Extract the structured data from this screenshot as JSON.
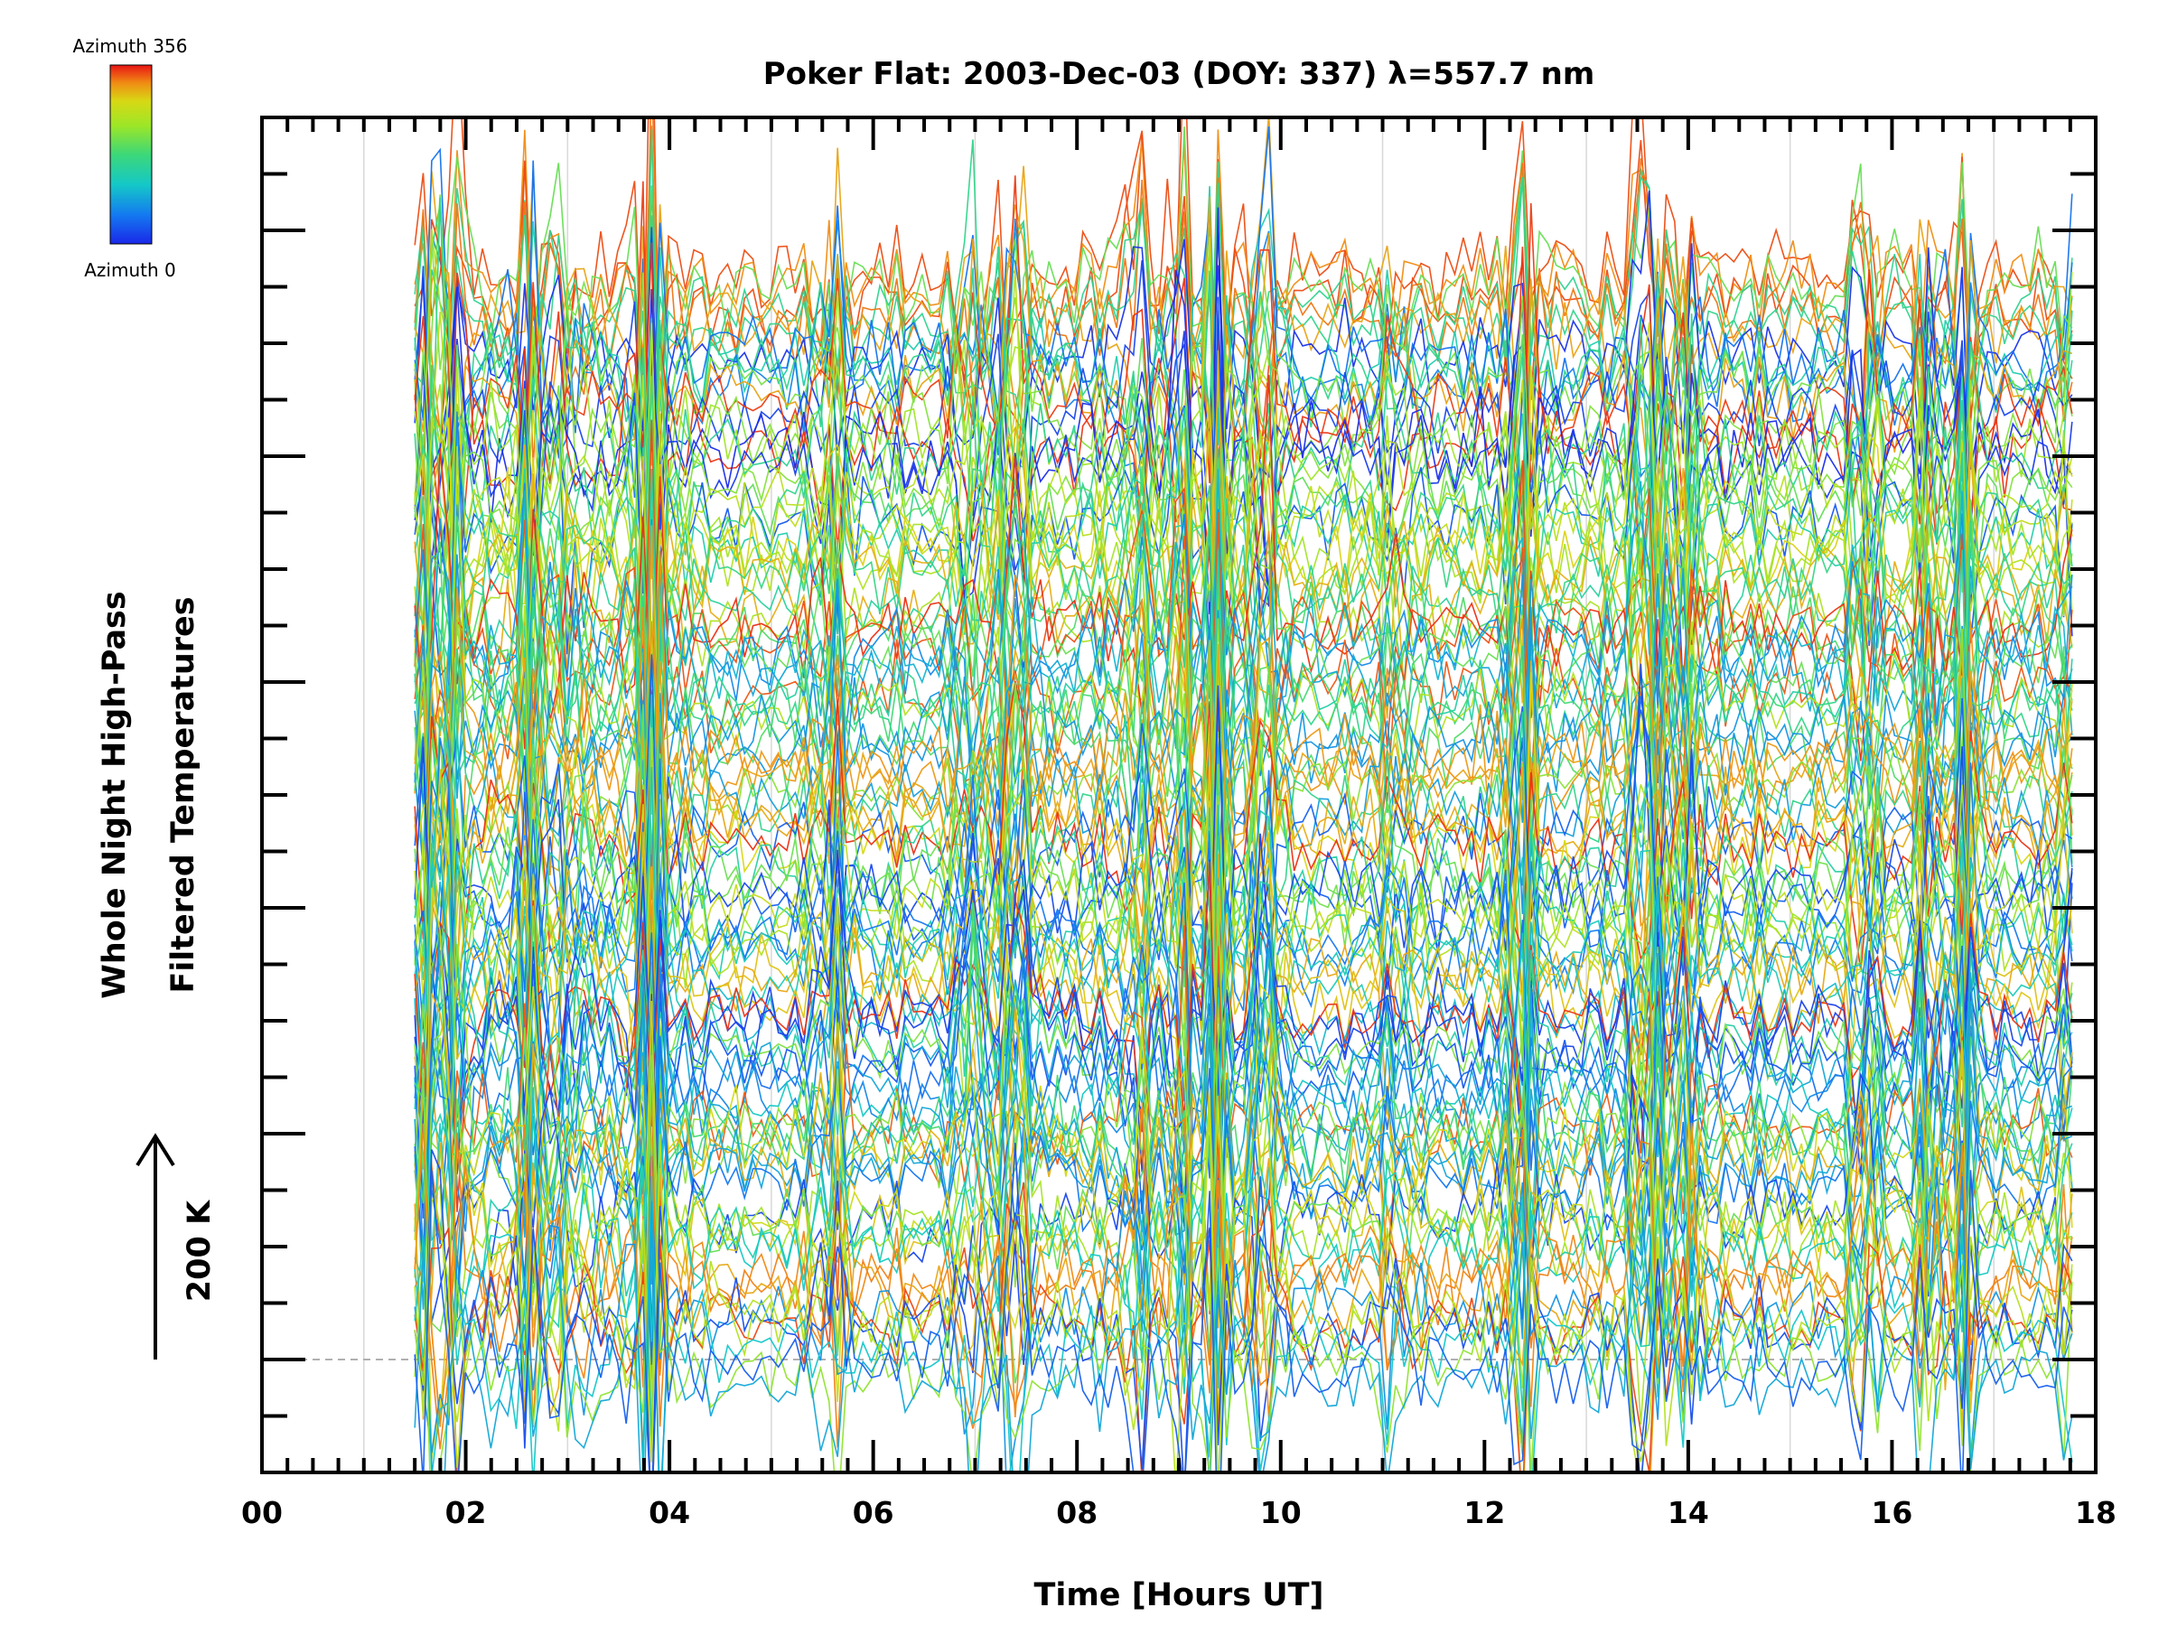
{
  "chart_data": {
    "type": "line",
    "title": "Poker Flat: 2003-Dec-03 (DOY: 337) λ=557.7 nm",
    "xlabel": "Time [Hours UT]",
    "ylabel_line1": "Whole Night High-Pass",
    "ylabel_line2": "Filtered Temperatures",
    "scale_label": "200 K",
    "xlim": [
      0,
      18
    ],
    "xticks": [
      "00",
      "02",
      "04",
      "06",
      "08",
      "10",
      "12",
      "14",
      "16",
      "18"
    ],
    "x_grid_hours": [
      1,
      3,
      5,
      7,
      9,
      11,
      13,
      15,
      17
    ],
    "data_start_hour": 1.5,
    "data_end_hour": 17.85,
    "sample_interval_hours": 0.083,
    "series_count": 120,
    "colorbar": {
      "top_label": "Azimuth 356",
      "bottom_label": "Azimuth 0",
      "min_azimuth": 0,
      "max_azimuth": 356
    },
    "palette": [
      "#1a28e8",
      "#1478f0",
      "#14c8c8",
      "#3cd878",
      "#9ce628",
      "#d8d814",
      "#f08c14",
      "#e81414"
    ]
  }
}
